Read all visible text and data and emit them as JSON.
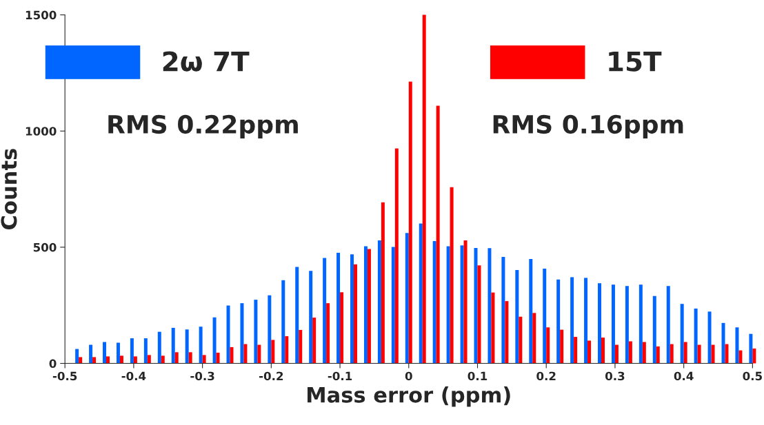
{
  "chart_data": {
    "type": "bar",
    "xlabel": "Mass error (ppm)",
    "ylabel": "Counts",
    "x": [
      -0.48,
      -0.46,
      -0.44,
      -0.42,
      -0.4,
      -0.38,
      -0.36,
      -0.34,
      -0.32,
      -0.3,
      -0.28,
      -0.26,
      -0.24,
      -0.22,
      -0.2,
      -0.18,
      -0.16,
      -0.14,
      -0.12,
      -0.1,
      -0.08,
      -0.06,
      -0.04,
      -0.02,
      0.0,
      0.02,
      0.04,
      0.06,
      0.08,
      0.1,
      0.12,
      0.14,
      0.16,
      0.18,
      0.2,
      0.22,
      0.24,
      0.26,
      0.28,
      0.3,
      0.32,
      0.34,
      0.36,
      0.38,
      0.4,
      0.42,
      0.44,
      0.46,
      0.48,
      0.5
    ],
    "series": [
      {
        "name": "2ω 7T",
        "color": "#0066ff",
        "values": [
          62,
          80,
          92,
          89,
          108,
          108,
          136,
          153,
          146,
          158,
          198,
          249,
          259,
          274,
          293,
          358,
          415,
          398,
          454,
          476,
          469,
          504,
          529,
          501,
          561,
          602,
          526,
          504,
          508,
          497,
          496,
          458,
          402,
          449,
          408,
          361,
          371,
          368,
          345,
          339,
          333,
          339,
          290,
          333,
          256,
          236,
          223,
          174,
          155,
          127
        ]
      },
      {
        "name": "15T",
        "color": "#ff0000",
        "values": [
          27,
          27,
          30,
          33,
          30,
          36,
          33,
          48,
          48,
          36,
          46,
          70,
          83,
          80,
          101,
          117,
          144,
          197,
          259,
          306,
          426,
          492,
          693,
          925,
          1213,
          1500,
          1109,
          758,
          529,
          422,
          305,
          268,
          201,
          217,
          155,
          145,
          114,
          98,
          111,
          80,
          95,
          92,
          73,
          83,
          92,
          80,
          80,
          83,
          56,
          64
        ]
      }
    ],
    "xlim": [
      -0.5,
      0.5
    ],
    "xticks": [
      -0.5,
      -0.4,
      -0.3,
      -0.2,
      -0.1,
      0,
      0.1,
      0.2,
      0.3,
      0.4,
      0.5
    ],
    "ylim": [
      0,
      1500
    ],
    "yticks": [
      0,
      500,
      1000,
      1500
    ],
    "annotations": [
      "RMS 0.22ppm",
      "RMS 0.16ppm"
    ],
    "legend": "top",
    "grid": false
  }
}
